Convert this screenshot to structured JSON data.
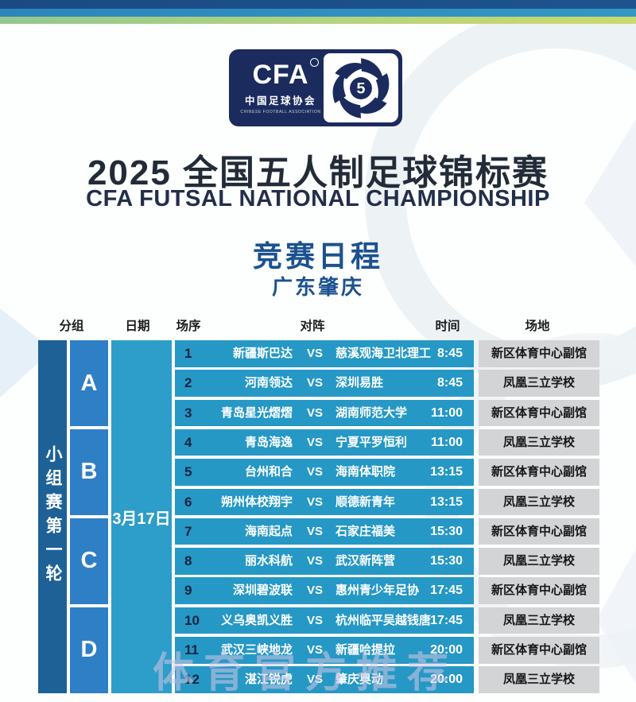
{
  "header": {
    "logo": {
      "cfa_text": "CFA",
      "cn_text": "中国足球协会",
      "en_text": "CHINESE FOOTBALL ASSOCIATION",
      "badge_digit": "5"
    },
    "title_cn": "2025 全国五人制足球锦标赛",
    "title_en": "CFA FUTSAL NATIONAL CHAMPIONSHIP",
    "subtitle": "竞赛日程",
    "location": "广东肇庆"
  },
  "table": {
    "columns": [
      "分组",
      "日期",
      "场序",
      "对阵",
      "时间",
      "场地"
    ],
    "phase": "小组赛第一轮",
    "date": "3月17日",
    "vs_label": "VS",
    "groups": [
      {
        "label": "A"
      },
      {
        "label": "B"
      },
      {
        "label": "C"
      },
      {
        "label": "D"
      }
    ],
    "matches": [
      {
        "no": "1",
        "home": "新疆斯巴达",
        "away": "慈溪观海卫北理工",
        "time": "8:45",
        "venue": "新区体育中心副馆"
      },
      {
        "no": "2",
        "home": "河南领达",
        "away": "深圳易胜",
        "time": "8:45",
        "venue": "凤凰三立学校"
      },
      {
        "no": "3",
        "home": "青岛星光熠熠",
        "away": "湖南师范大学",
        "time": "11:00",
        "venue": "新区体育中心副馆"
      },
      {
        "no": "4",
        "home": "青岛海逸",
        "away": "宁夏平罗恒利",
        "time": "11:00",
        "venue": "凤凰三立学校"
      },
      {
        "no": "5",
        "home": "台州和合",
        "away": "海南体职院",
        "time": "13:15",
        "venue": "新区体育中心副馆"
      },
      {
        "no": "6",
        "home": "朔州体校翔宇",
        "away": "顺德新青年",
        "time": "13:15",
        "venue": "凤凰三立学校"
      },
      {
        "no": "7",
        "home": "海南起点",
        "away": "石家庄福美",
        "time": "15:30",
        "venue": "新区体育中心副馆"
      },
      {
        "no": "8",
        "home": "丽水科航",
        "away": "武汉新阵营",
        "time": "15:30",
        "venue": "凤凰三立学校"
      },
      {
        "no": "9",
        "home": "深圳碧波联",
        "away": "惠州青少年足协",
        "time": "17:45",
        "venue": "新区体育中心副馆"
      },
      {
        "no": "10",
        "home": "义乌奥凯义胜",
        "away": "杭州临平吴越钱唐",
        "time": "17:45",
        "venue": "凤凰三立学校"
      },
      {
        "no": "11",
        "home": "武汉三峡地龙",
        "away": "新疆哈提拉",
        "time": "20:00",
        "venue": "新区体育中心副馆"
      },
      {
        "no": "12",
        "home": "湛江锐虎",
        "away": "肇庆奥动",
        "time": "20:00",
        "venue": "凤凰三立学校"
      }
    ]
  },
  "watermark": "体育官方推荐",
  "colors": {
    "row-teal": "#2598c6",
    "date-teal": "#2d9dc9",
    "group-blue": "#2e7fc5",
    "phase-blue": "#1d6197",
    "venue-gray": "#d3d4d6",
    "logo-navy": "#1b2b5e",
    "title-blue": "#1b518f"
  }
}
